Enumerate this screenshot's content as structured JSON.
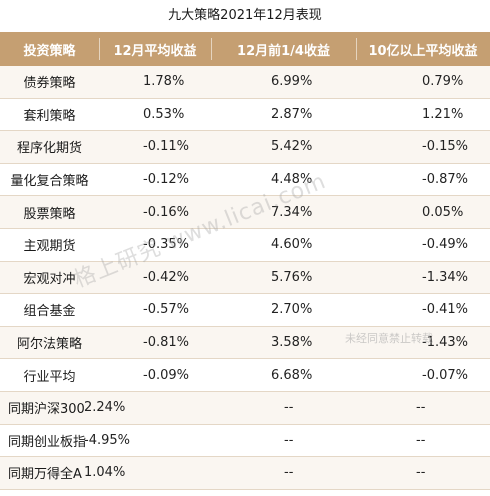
{
  "title": "九大策略2021年12月表现",
  "headers": [
    "投资策略",
    "12月平均收益",
    "12月前1/4收益",
    "10亿以上平均收益"
  ],
  "rows": [
    {
      "name": "债券策略",
      "avg": "1.78%",
      "top_quarter": "6.99%",
      "large": "0.79%"
    },
    {
      "name": "套利策略",
      "avg": "0.53%",
      "top_quarter": "2.87%",
      "large": "1.21%"
    },
    {
      "name": "程序化期货",
      "avg": "-0.11%",
      "top_quarter": "5.42%",
      "large": "-0.15%"
    },
    {
      "name": "量化复合策略",
      "avg": "-0.12%",
      "top_quarter": "4.48%",
      "large": "-0.87%"
    },
    {
      "name": "股票策略",
      "avg": "-0.16%",
      "top_quarter": "7.34%",
      "large": "0.05%"
    },
    {
      "name": "主观期货",
      "avg": "-0.35%",
      "top_quarter": "4.60%",
      "large": "-0.49%"
    },
    {
      "name": "宏观对冲",
      "avg": "-0.42%",
      "top_quarter": "5.76%",
      "large": "-1.34%"
    },
    {
      "name": "组合基金",
      "avg": "-0.57%",
      "top_quarter": "2.70%",
      "large": "-0.41%"
    },
    {
      "name": "阿尔法策略",
      "avg": "-0.81%",
      "top_quarter": "3.58%",
      "large": "-1.43%"
    },
    {
      "name": "行业平均",
      "avg": "-0.09%",
      "top_quarter": "6.68%",
      "large": "-0.07%"
    }
  ],
  "benchmarks": [
    {
      "name": "同期沪深300",
      "avg": "2.24%",
      "top_quarter": "--",
      "large": "--"
    },
    {
      "name": "同期创业板指",
      "avg": "-4.95%",
      "top_quarter": "--",
      "large": "--"
    },
    {
      "name": "同期万得全A",
      "avg": "1.04%",
      "top_quarter": "--",
      "large": "--"
    }
  ],
  "watermark": "格上研究 www.licai.com",
  "watermark_note": "未经同意禁止转载",
  "colors": {
    "header_bg": "#c59f72",
    "header_text": "#ffffff",
    "row_border": "#e4d7c6"
  }
}
